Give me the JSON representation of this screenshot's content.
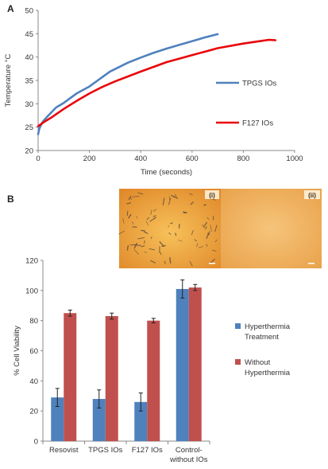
{
  "panels": {
    "a_label": "A",
    "b_label": "B"
  },
  "micrographs": {
    "left_label": "(i)",
    "right_label": "(ii)",
    "left_color": "#f0a436",
    "right_color": "#f2b45a"
  },
  "chart_data": [
    {
      "type": "line",
      "xlabel": "Time (seconds)",
      "ylabel": "Temperature °C",
      "xlim": [
        0,
        1000
      ],
      "ylim": [
        20,
        50
      ],
      "xticks": [
        0,
        200,
        400,
        600,
        800,
        1000
      ],
      "yticks": [
        20,
        25,
        30,
        35,
        40,
        45,
        50
      ],
      "grid": false,
      "legend": "right",
      "series": [
        {
          "name": "TPGS IOs",
          "color": "#4f81bd",
          "x": [
            0,
            5,
            10,
            20,
            40,
            70,
            100,
            150,
            200,
            280,
            350,
            400,
            450,
            500,
            550,
            600,
            650,
            700
          ],
          "y": [
            23.5,
            24.7,
            25.3,
            26.3,
            27.5,
            29.2,
            30.2,
            32.2,
            33.7,
            36.9,
            38.8,
            39.9,
            40.9,
            41.8,
            42.6,
            43.4,
            44.2,
            44.9
          ]
        },
        {
          "name": "F127 IOs",
          "color": "#e8060a",
          "x": [
            0,
            20,
            50,
            100,
            150,
            200,
            250,
            300,
            400,
            500,
            600,
            700,
            800,
            850,
            900,
            925
          ],
          "y": [
            25.2,
            26.0,
            27.0,
            28.9,
            30.6,
            32.2,
            33.6,
            34.8,
            36.9,
            38.9,
            40.4,
            41.9,
            42.9,
            43.3,
            43.7,
            43.6
          ]
        }
      ]
    },
    {
      "type": "bar",
      "ylabel": "% Cell Viability",
      "ylim": [
        0,
        120
      ],
      "yticks": [
        0,
        20,
        40,
        60,
        80,
        100,
        120
      ],
      "grid": false,
      "legend": "right",
      "categories": [
        "Resovist",
        "TPGS IOs",
        "F127 IOs",
        "Control-\nwithout IOs"
      ],
      "category_lines": [
        [
          "Resovist"
        ],
        [
          "TPGS IOs"
        ],
        [
          "F127 IOs"
        ],
        [
          "Control-",
          "without IOs"
        ]
      ],
      "series": [
        {
          "name": "Hyperthermia Treatment",
          "legend_lines": [
            "Hyperthermia",
            "Treatment"
          ],
          "color": "#4f81bd",
          "values": [
            29,
            28,
            26,
            101
          ],
          "errors": [
            6,
            6,
            6,
            6
          ]
        },
        {
          "name": "Without Hyperthermia",
          "legend_lines": [
            "Without",
            "Hyperthermia"
          ],
          "color": "#c0504d",
          "values": [
            85,
            83,
            80,
            102
          ],
          "errors": [
            2,
            2,
            1.5,
            2
          ]
        }
      ]
    }
  ]
}
